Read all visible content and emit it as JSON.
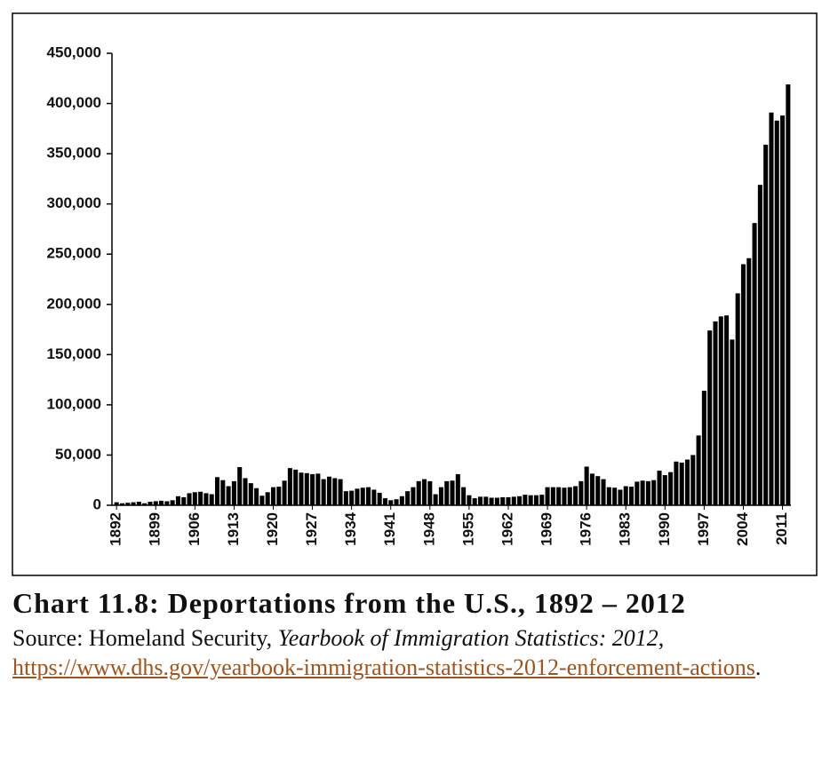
{
  "chart_data": {
    "type": "bar",
    "title": "Chart 11.8: Deportations from the U.S., 1892 – 2012",
    "categories": [
      "1892",
      null,
      null,
      null,
      null,
      null,
      null,
      "1899",
      null,
      null,
      null,
      null,
      null,
      null,
      "1906",
      null,
      null,
      null,
      null,
      null,
      null,
      "1913",
      null,
      null,
      null,
      null,
      null,
      null,
      "1920",
      null,
      null,
      null,
      null,
      null,
      null,
      "1927",
      null,
      null,
      null,
      null,
      null,
      null,
      "1934",
      null,
      null,
      null,
      null,
      null,
      null,
      "1941",
      null,
      null,
      null,
      null,
      null,
      null,
      "1948",
      null,
      null,
      null,
      null,
      null,
      null,
      "1955",
      null,
      null,
      null,
      null,
      null,
      null,
      "1962",
      null,
      null,
      null,
      null,
      null,
      null,
      "1969",
      null,
      null,
      null,
      null,
      null,
      null,
      "1976",
      null,
      null,
      null,
      null,
      null,
      null,
      "1983",
      null,
      null,
      null,
      null,
      null,
      null,
      "1990",
      null,
      null,
      null,
      null,
      null,
      null,
      "1997",
      null,
      null,
      null,
      null,
      null,
      null,
      "2004",
      null,
      null,
      null,
      null,
      null,
      null,
      "2011",
      null
    ],
    "values": [
      3000,
      2000,
      2500,
      3000,
      3500,
      2000,
      3500,
      4000,
      4500,
      4000,
      5000,
      9000,
      8000,
      12000,
      13000,
      13500,
      12000,
      11000,
      28000,
      25000,
      19000,
      24000,
      38000,
      27000,
      22000,
      17000,
      9500,
      13000,
      18000,
      18500,
      24500,
      37000,
      35500,
      32500,
      32000,
      31000,
      31500,
      26000,
      28500,
      27000,
      26000,
      14000,
      14500,
      16500,
      17500,
      18000,
      15500,
      12500,
      7000,
      5000,
      6000,
      9000,
      14000,
      18000,
      24000,
      26000,
      24000,
      11000,
      18000,
      24000,
      24500,
      31000,
      18000,
      10000,
      7000,
      8500,
      8500,
      7500,
      7500,
      8000,
      8000,
      8500,
      9000,
      10500,
      10000,
      10000,
      10500,
      18000,
      18000,
      18000,
      17500,
      18000,
      19000,
      24000,
      38500,
      31500,
      29000,
      26000,
      18000,
      17500,
      15500,
      19000,
      18500,
      23500,
      24500,
      24000,
      25000,
      34500,
      30000,
      33000,
      43500,
      42500,
      45500,
      50000,
      69500,
      114000,
      174000,
      183000,
      188000,
      189000,
      165000,
      211000,
      240000,
      246000,
      281000,
      319000,
      359000,
      391000,
      383000,
      388000,
      419000
    ],
    "color": "#000000",
    "ylim": [
      0,
      450000
    ],
    "yticks": [
      0,
      {
        "value": 50000,
        "label": "50,000"
      },
      {
        "value": 100000,
        "label": "100,000"
      },
      {
        "value": 150000,
        "label": "150,000"
      },
      {
        "value": 200000,
        "label": "200,000"
      },
      {
        "value": 250000,
        "label": "250,000"
      },
      {
        "value": 300000,
        "label": "300,000"
      },
      {
        "value": 350000,
        "label": "350,000"
      },
      {
        "value": 400000,
        "label": "400,000"
      },
      {
        "value": 450000,
        "label": "450,000"
      }
    ],
    "grid": false
  },
  "source": {
    "prefix": "Source: Homeland Security,",
    "publication": "Yearbook of Immigration Statistics: 2012",
    "separator": ",",
    "url": "https://www.dhs.gov/yearbook-immigration-statistics-2012-enforcement-actions",
    "end": "."
  }
}
